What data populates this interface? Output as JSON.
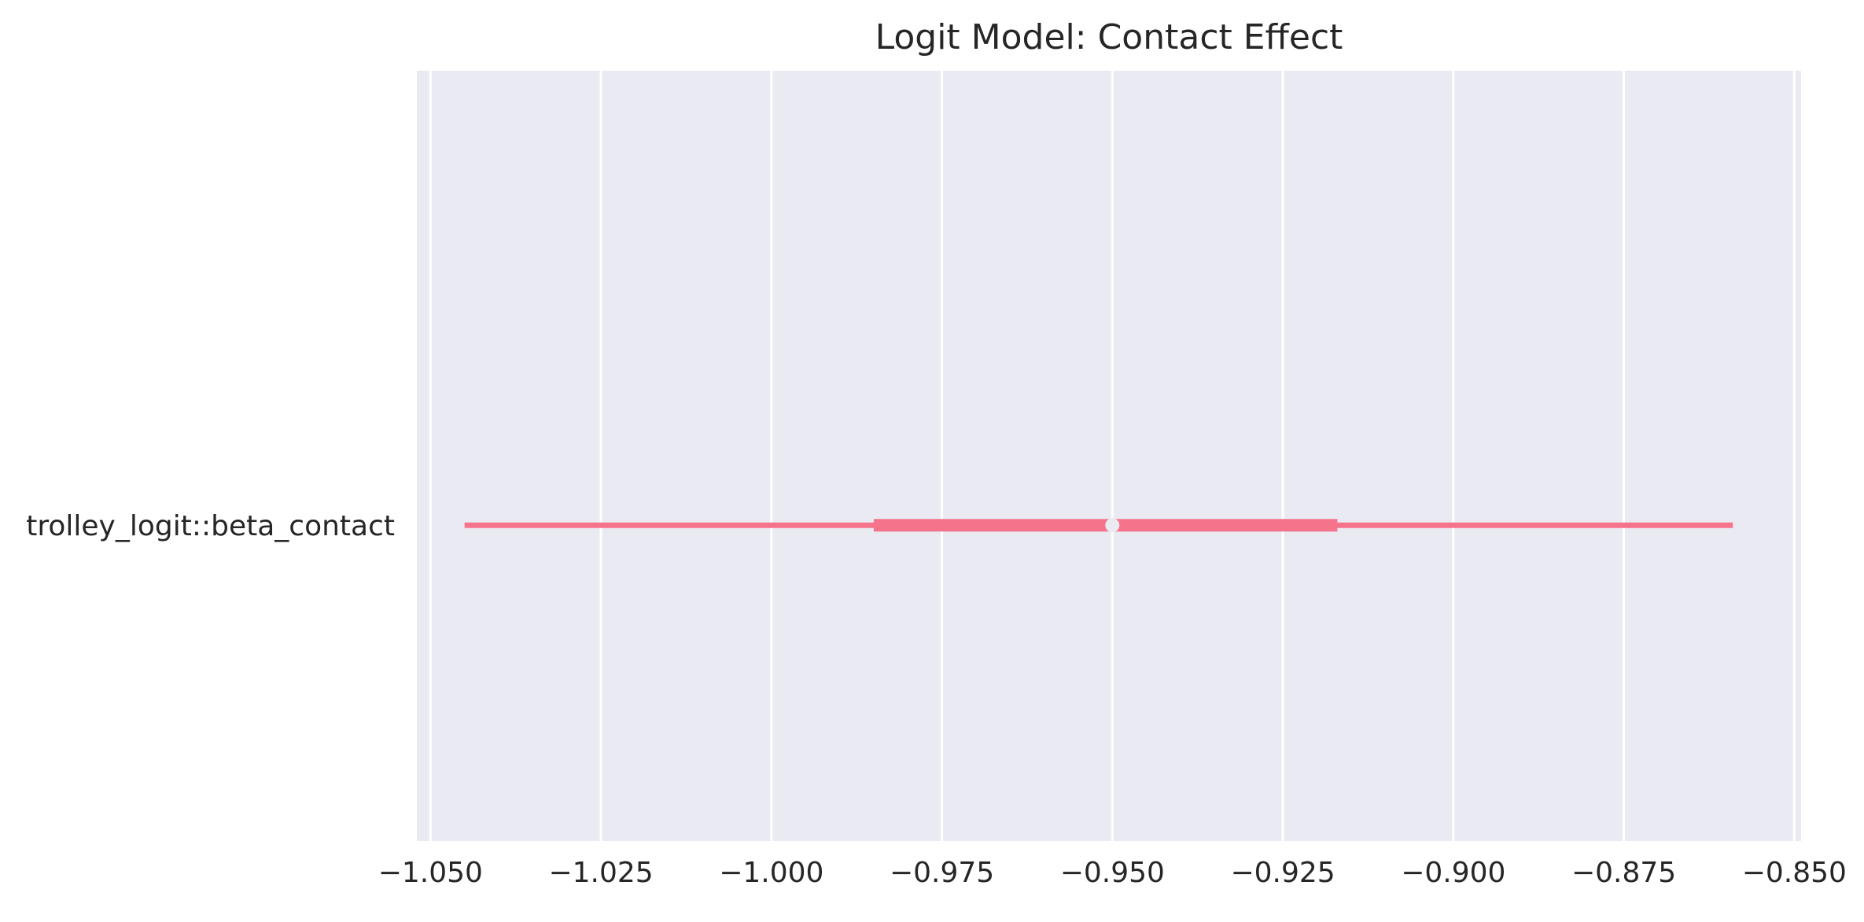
{
  "chart_data": {
    "type": "forest",
    "title": "Logit Model: Contact Effect",
    "xlabel": "",
    "ylabel": "",
    "xlim": [
      -1.052,
      -0.849
    ],
    "x_ticks": [
      -1.05,
      -1.025,
      -1.0,
      -0.975,
      -0.95,
      -0.925,
      -0.9,
      -0.875,
      -0.85
    ],
    "x_tick_labels": [
      "−1.050",
      "−1.025",
      "−1.000",
      "−0.975",
      "−0.950",
      "−0.925",
      "−0.900",
      "−0.875",
      "−0.850"
    ],
    "grid": true,
    "rows": [
      {
        "label": "trolley_logit::beta_contact",
        "point": -0.95,
        "interval_inner": [
          -0.985,
          -0.917
        ],
        "interval_outer": [
          -1.045,
          -0.859
        ]
      }
    ],
    "colors": {
      "background": "#eaeaf2",
      "grid": "#ffffff",
      "interval": "#f5748c",
      "point": "#eaeaf2"
    }
  }
}
